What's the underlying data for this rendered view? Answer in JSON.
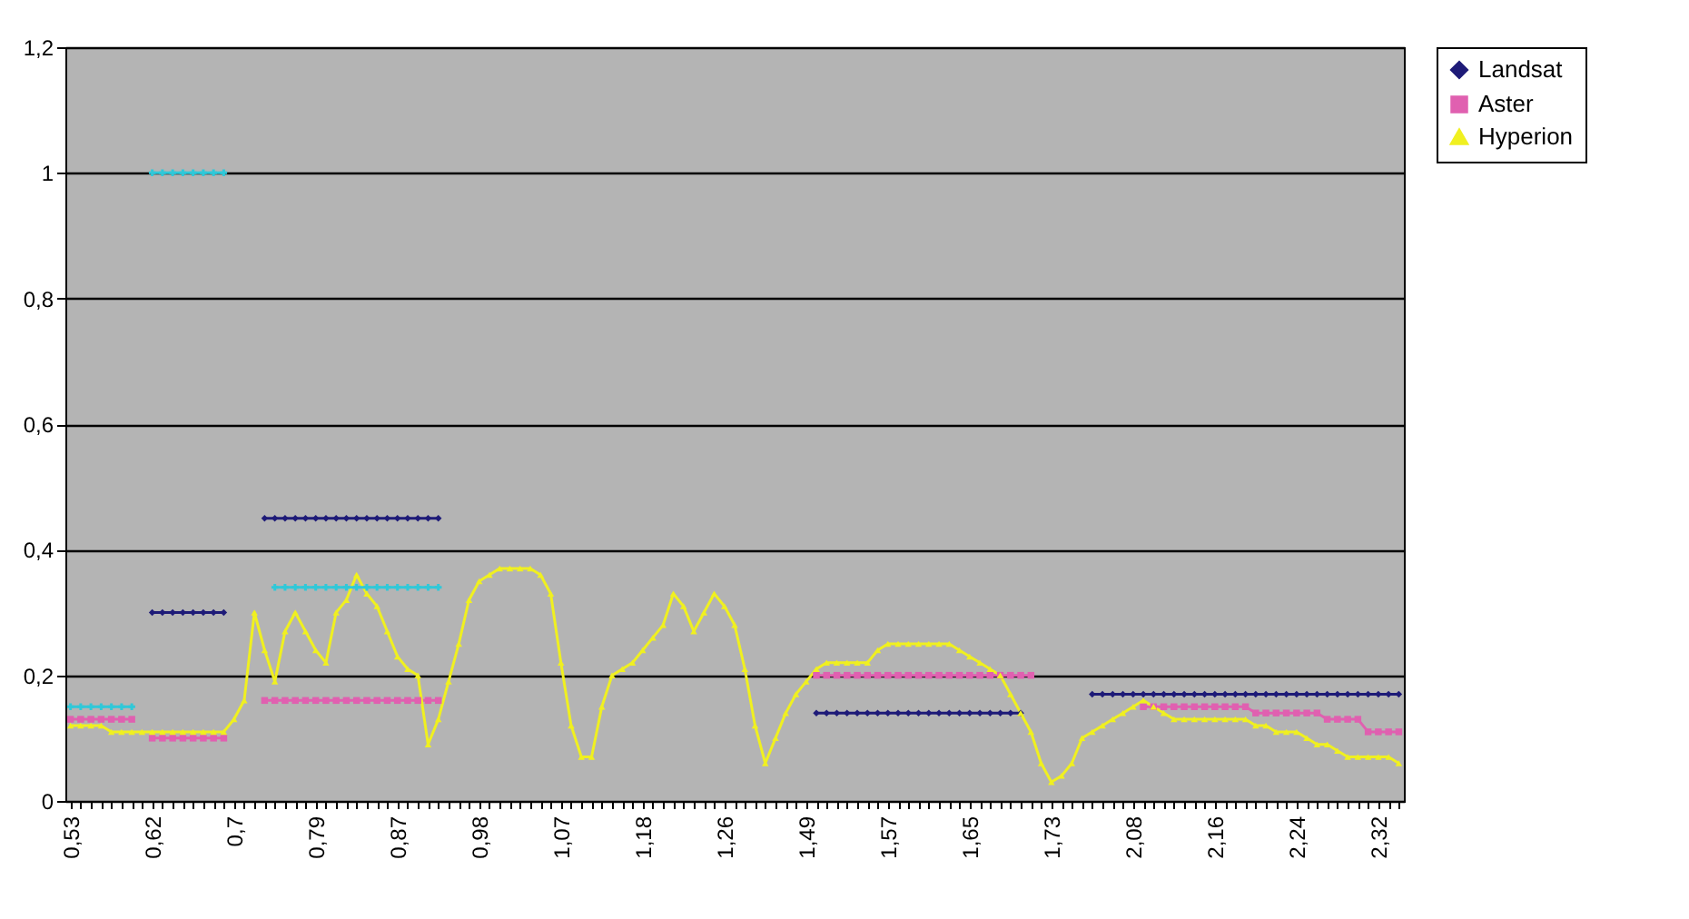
{
  "chart_data": {
    "type": "line",
    "categories": [
      "0,53",
      null,
      null,
      null,
      null,
      null,
      null,
      null,
      "0,62",
      null,
      null,
      null,
      null,
      null,
      null,
      null,
      "0,7",
      null,
      null,
      null,
      null,
      null,
      null,
      null,
      "0,79",
      null,
      null,
      null,
      null,
      null,
      null,
      null,
      "0,87",
      null,
      null,
      null,
      null,
      null,
      null,
      null,
      "0,98",
      null,
      null,
      null,
      null,
      null,
      null,
      null,
      "1,07",
      null,
      null,
      null,
      null,
      null,
      null,
      null,
      "1,18",
      null,
      null,
      null,
      null,
      null,
      null,
      null,
      "1,26",
      null,
      null,
      null,
      null,
      null,
      null,
      null,
      "1,49",
      null,
      null,
      null,
      null,
      null,
      null,
      null,
      "1,57",
      null,
      null,
      null,
      null,
      null,
      null,
      null,
      "1,65",
      null,
      null,
      null,
      null,
      null,
      null,
      null,
      "1,73",
      null,
      null,
      null,
      null,
      null,
      null,
      null,
      "2,08",
      null,
      null,
      null,
      null,
      null,
      null,
      null,
      "2,16",
      null,
      null,
      null,
      null,
      null,
      null,
      null,
      "2,24",
      null,
      null,
      null,
      null,
      null,
      null,
      null,
      "2,32",
      null,
      null
    ],
    "ylim": [
      0,
      1.2
    ],
    "yticks": [
      0,
      {
        "value": 0.2,
        "label": "0,2"
      },
      {
        "value": 0.4,
        "label": "0,4"
      },
      {
        "value": 0.6,
        "label": "0,6"
      },
      {
        "value": 0.8,
        "label": "0,8"
      },
      {
        "value": 1,
        "label": "1"
      },
      {
        "value": 1.2,
        "label": "1,2"
      }
    ],
    "grid": "y",
    "legend": "right",
    "series": [
      {
        "name": "Landsat",
        "color": "#1e1b78",
        "marker": "diamond",
        "values": [
          null,
          null,
          null,
          null,
          null,
          null,
          null,
          null,
          0.3,
          0.3,
          0.3,
          0.3,
          0.3,
          0.3,
          0.3,
          0.3,
          null,
          null,
          null,
          0.45,
          0.45,
          0.45,
          0.45,
          0.45,
          0.45,
          0.45,
          0.45,
          0.45,
          0.45,
          0.45,
          0.45,
          0.45,
          0.45,
          0.45,
          0.45,
          0.45,
          0.45,
          null,
          null,
          null,
          null,
          null,
          null,
          null,
          null,
          null,
          null,
          null,
          null,
          null,
          null,
          null,
          null,
          null,
          null,
          null,
          null,
          null,
          null,
          null,
          null,
          null,
          null,
          null,
          null,
          null,
          null,
          null,
          null,
          null,
          null,
          null,
          null,
          0.14,
          0.14,
          0.14,
          0.14,
          0.14,
          0.14,
          0.14,
          0.14,
          0.14,
          0.14,
          0.14,
          0.14,
          0.14,
          0.14,
          0.14,
          0.14,
          0.14,
          0.14,
          0.14,
          0.14,
          0.14,
          null,
          null,
          null,
          null,
          null,
          null,
          0.17,
          0.17,
          0.17,
          0.17,
          0.17,
          0.17,
          0.17,
          0.17,
          0.17,
          0.17,
          0.17,
          0.17,
          0.17,
          0.17,
          0.17,
          0.17,
          0.17,
          0.17,
          0.17,
          0.17,
          0.17,
          0.17,
          0.17,
          0.17,
          0.17,
          0.17,
          0.17,
          0.17,
          0.17,
          0.17,
          0.17
        ]
      },
      {
        "name": "Aster",
        "color": "#e060b0",
        "marker": "square",
        "values": [
          0.13,
          0.13,
          0.13,
          0.13,
          0.13,
          0.13,
          0.13,
          null,
          0.1,
          0.1,
          0.1,
          0.1,
          0.1,
          0.1,
          0.1,
          0.1,
          null,
          null,
          null,
          0.16,
          0.16,
          0.16,
          0.16,
          0.16,
          0.16,
          0.16,
          0.16,
          0.16,
          0.16,
          0.16,
          0.16,
          0.16,
          0.16,
          0.16,
          0.16,
          0.16,
          0.16,
          null,
          null,
          null,
          null,
          null,
          null,
          null,
          null,
          null,
          null,
          null,
          null,
          null,
          null,
          null,
          null,
          null,
          null,
          null,
          null,
          null,
          null,
          null,
          null,
          null,
          null,
          null,
          null,
          null,
          null,
          null,
          null,
          null,
          null,
          null,
          null,
          0.2,
          0.2,
          0.2,
          0.2,
          0.2,
          0.2,
          0.2,
          0.2,
          0.2,
          0.2,
          0.2,
          0.2,
          0.2,
          0.2,
          0.2,
          0.2,
          0.2,
          0.2,
          0.2,
          0.2,
          0.2,
          0.2,
          null,
          null,
          null,
          null,
          null,
          null,
          null,
          null,
          null,
          null,
          0.15,
          0.15,
          0.15,
          0.15,
          0.15,
          0.15,
          0.15,
          0.15,
          0.15,
          0.15,
          0.15,
          0.14,
          0.14,
          0.14,
          0.14,
          0.14,
          0.14,
          0.14,
          0.13,
          0.13,
          0.13,
          0.13,
          0.11,
          0.11,
          0.11,
          0.11
        ]
      },
      {
        "name": "Hyperion",
        "color": "#f0f020",
        "marker": "triangle",
        "values": [
          0.12,
          0.12,
          0.12,
          0.12,
          0.11,
          0.11,
          0.11,
          0.11,
          0.11,
          0.11,
          0.11,
          0.11,
          0.11,
          0.11,
          0.11,
          0.11,
          0.13,
          0.16,
          0.3,
          0.24,
          0.19,
          0.27,
          0.3,
          0.27,
          0.24,
          0.22,
          0.3,
          0.32,
          0.36,
          0.33,
          0.31,
          0.27,
          0.23,
          0.21,
          0.2,
          0.09,
          0.13,
          0.19,
          0.25,
          0.32,
          0.35,
          0.36,
          0.37,
          0.37,
          0.37,
          0.37,
          0.36,
          0.33,
          0.22,
          0.12,
          0.07,
          0.07,
          0.15,
          0.2,
          0.21,
          0.22,
          0.24,
          0.26,
          0.28,
          0.33,
          0.31,
          0.27,
          0.3,
          0.33,
          0.31,
          0.28,
          0.21,
          0.12,
          0.06,
          0.1,
          0.14,
          0.17,
          0.19,
          0.21,
          0.22,
          0.22,
          0.22,
          0.22,
          0.22,
          0.24,
          0.25,
          0.25,
          0.25,
          0.25,
          0.25,
          0.25,
          0.25,
          0.24,
          0.23,
          0.22,
          0.21,
          0.2,
          0.17,
          0.14,
          0.11,
          0.06,
          0.03,
          0.04,
          0.06,
          0.1,
          0.11,
          0.12,
          0.13,
          0.14,
          0.15,
          0.16,
          0.15,
          0.14,
          0.13,
          0.13,
          0.13,
          0.13,
          0.13,
          0.13,
          0.13,
          0.13,
          0.12,
          0.12,
          0.11,
          0.11,
          0.11,
          0.1,
          0.09,
          0.09,
          0.08,
          0.07,
          0.07,
          0.07,
          0.07,
          0.07,
          0.06
        ]
      },
      {
        "color": "#30c8d8",
        "marker": "cross",
        "values": [
          0.15,
          0.15,
          0.15,
          0.15,
          0.15,
          0.15,
          0.15,
          null,
          1,
          1,
          1,
          1,
          1,
          1,
          1,
          1,
          null,
          null,
          null,
          null,
          0.34,
          0.34,
          0.34,
          0.34,
          0.34,
          0.34,
          0.34,
          0.34,
          0.34,
          0.34,
          0.34,
          0.34,
          0.34,
          0.34,
          0.34,
          0.34,
          0.34,
          null,
          null,
          null,
          null,
          null,
          null,
          null,
          null,
          null,
          null,
          null,
          null,
          null,
          null,
          null,
          null,
          null,
          null,
          null,
          null,
          null,
          null,
          null,
          null,
          null,
          null,
          null,
          null,
          null,
          null,
          null,
          null,
          null,
          null,
          null,
          null,
          null,
          null,
          null,
          null,
          null,
          null,
          null,
          null,
          null,
          null,
          null,
          null,
          null,
          null,
          null,
          null,
          null,
          null,
          null,
          null,
          null,
          null,
          null,
          null,
          null,
          null,
          null,
          null,
          null,
          null,
          null,
          null,
          null,
          null,
          null,
          null,
          null,
          null,
          null,
          null,
          null,
          null,
          null,
          null,
          null,
          null,
          null,
          null,
          null,
          null,
          null,
          null,
          null,
          null,
          null,
          null,
          null,
          null
        ]
      }
    ]
  }
}
